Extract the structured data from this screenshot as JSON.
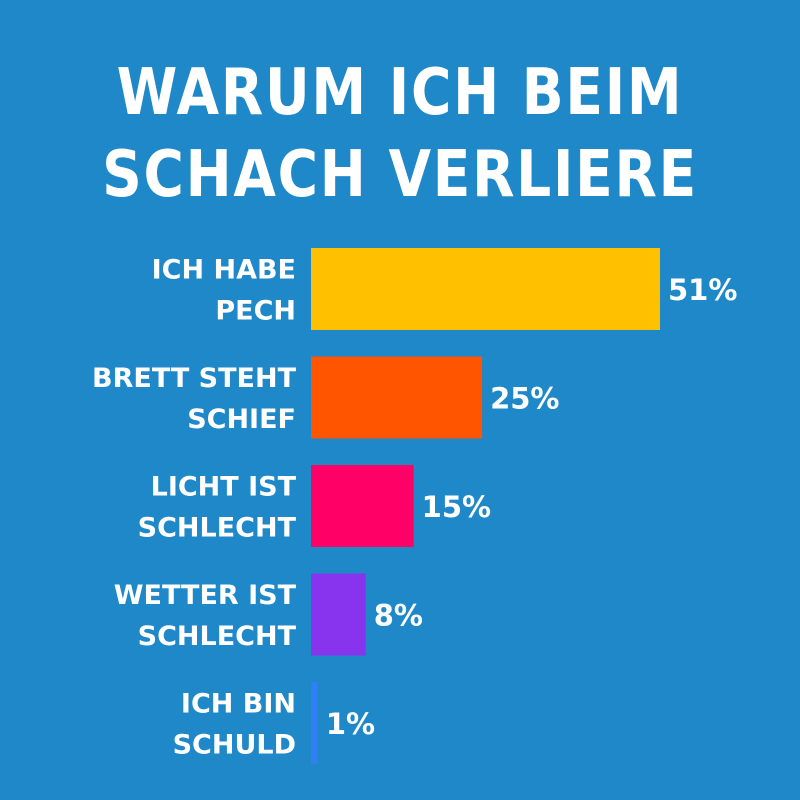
{
  "chart_data": {
    "type": "bar",
    "orientation": "horizontal",
    "title_lines": [
      "WARUM ICH BEIM",
      "SCHACH VERLIERE"
    ],
    "categories": [
      [
        "ICH HABE",
        "PECH"
      ],
      [
        "BRETT STEHT",
        "SCHIEF"
      ],
      [
        "LICHT IST",
        "SCHLECHT"
      ],
      [
        "WETTER IST",
        "SCHLECHT"
      ],
      [
        "ICH BIN",
        "SCHULD"
      ]
    ],
    "values": [
      51,
      25,
      15,
      8,
      1
    ],
    "value_labels": [
      "51%",
      "25%",
      "15%",
      "8%",
      "1%"
    ],
    "colors": [
      "#ffc000",
      "#ff5500",
      "#ff0066",
      "#8833ee",
      "#2f7ff5"
    ],
    "background": "#1e88c8",
    "xlim": [
      0,
      51
    ],
    "grid": false,
    "legend": "none"
  }
}
